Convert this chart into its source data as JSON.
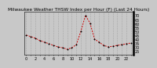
{
  "title": "Milwaukee Weather THSW Index per Hour (F) (Last 24 Hours)",
  "hours": [
    0,
    1,
    2,
    3,
    4,
    5,
    6,
    7,
    8,
    9,
    10,
    11,
    12,
    13,
    14,
    15,
    16,
    17,
    18,
    19,
    20,
    21,
    22,
    23
  ],
  "values": [
    45,
    43,
    41,
    38,
    36,
    34,
    32,
    30,
    29,
    27,
    29,
    33,
    50,
    70,
    60,
    40,
    36,
    32,
    30,
    31,
    32,
    33,
    34,
    35
  ],
  "line_color": "#cc0000",
  "marker_color": "#000000",
  "bg_color": "#c8c8c8",
  "plot_bg": "#c8c8c8",
  "grid_color": "#888888",
  "ylim": [
    20,
    75
  ],
  "yticks": [
    25,
    30,
    35,
    40,
    45,
    50,
    55,
    60,
    65,
    70
  ],
  "title_fontsize": 4.2,
  "tick_fontsize": 3.5,
  "linewidth": 0.7,
  "markersize": 1.0
}
